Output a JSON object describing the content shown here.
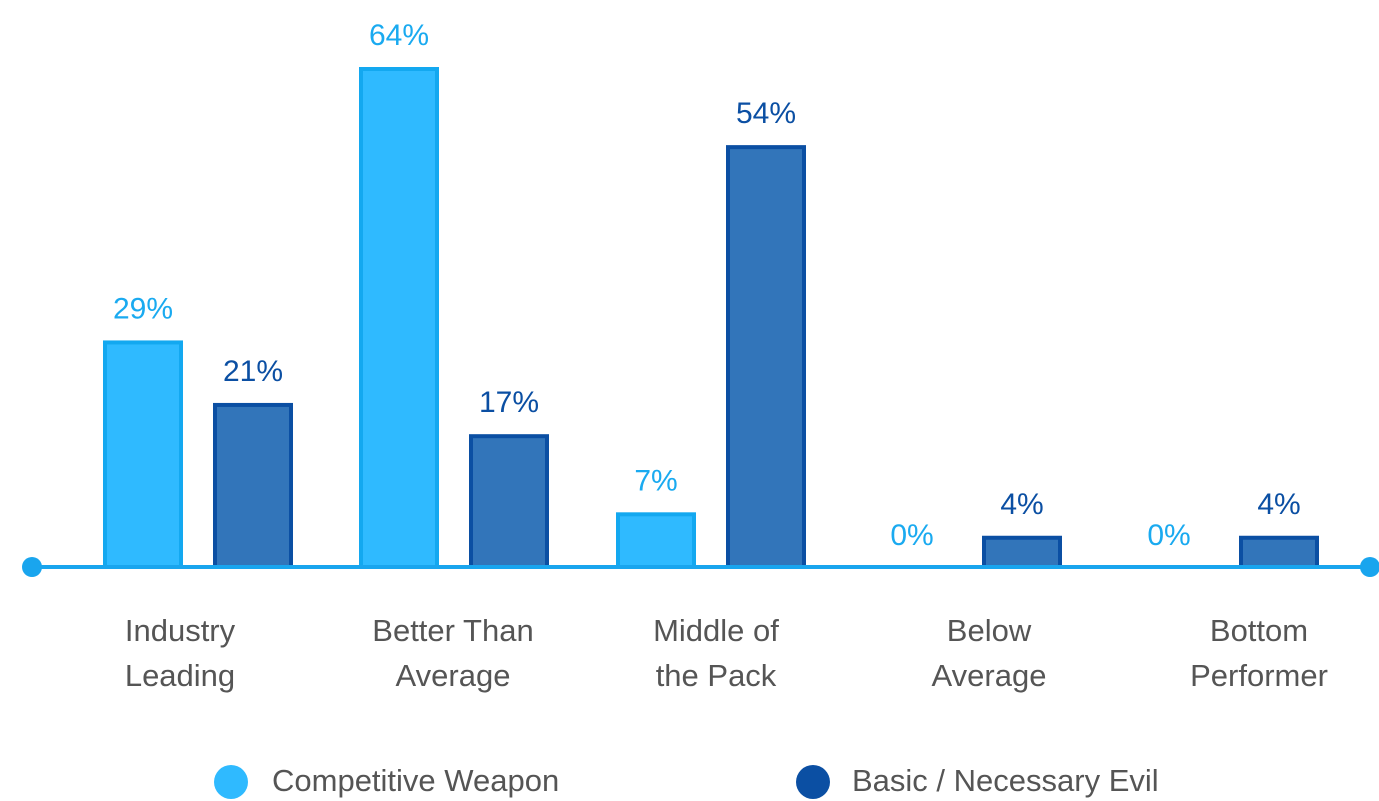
{
  "chart_data": {
    "type": "bar",
    "categories": [
      [
        "Industry",
        "Leading"
      ],
      [
        "Better Than",
        "Average"
      ],
      [
        "Middle of",
        "the Pack"
      ],
      [
        "Below",
        "Average"
      ],
      [
        "Bottom",
        "Performer"
      ]
    ],
    "series": [
      {
        "name": "Competitive Weapon",
        "values": [
          29,
          64,
          7,
          0,
          0
        ],
        "color": "#2fbaff",
        "stroke": "#13a8f0",
        "label_color": "#1aaaf0"
      },
      {
        "name": "Basic / Necessary Evil",
        "values": [
          21,
          17,
          54,
          4,
          4
        ],
        "color": "#3275ba",
        "stroke": "#0b4fa3",
        "label_color": "#0b4fa3"
      }
    ],
    "value_suffix": "%",
    "ylim": [
      0,
      64
    ],
    "axis_color": "#19a5ee",
    "grid": false,
    "legend_position": "bottom"
  }
}
